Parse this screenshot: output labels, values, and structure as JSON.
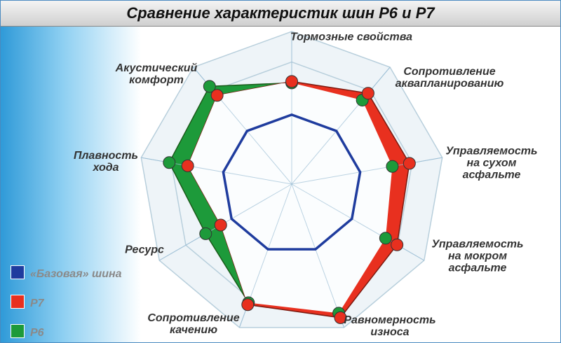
{
  "chart_data": {
    "type": "radar",
    "title": "Сравнение характеристик шин Р6 и Р7",
    "categories": [
      "Тормозные свойства",
      "Сопротивление\nаквапланированию",
      "Управляемость\nна сухом асфальте",
      "Управляемость\nна мокром асфальте",
      "Равномерность\nизноса",
      "Сопротивление\nкачению",
      "Ресурс",
      "Плавность\nхода",
      "Акустический\nкомфорт"
    ],
    "rlim": [
      0,
      220
    ],
    "series": [
      {
        "name": "«Базовая» шина",
        "color": "#1f3c9e",
        "values": [
          100,
          100,
          100,
          100,
          100,
          100,
          100,
          100,
          100
        ]
      },
      {
        "name": "Р7",
        "color": "#e8301f",
        "values": [
          148,
          171,
          172,
          175,
          205,
          185,
          118,
          152,
          167
        ]
      },
      {
        "name": "Р6",
        "color": "#1d9a3a",
        "values": [
          146,
          158,
          147,
          156,
          198,
          182,
          143,
          179,
          184
        ]
      }
    ]
  }
}
